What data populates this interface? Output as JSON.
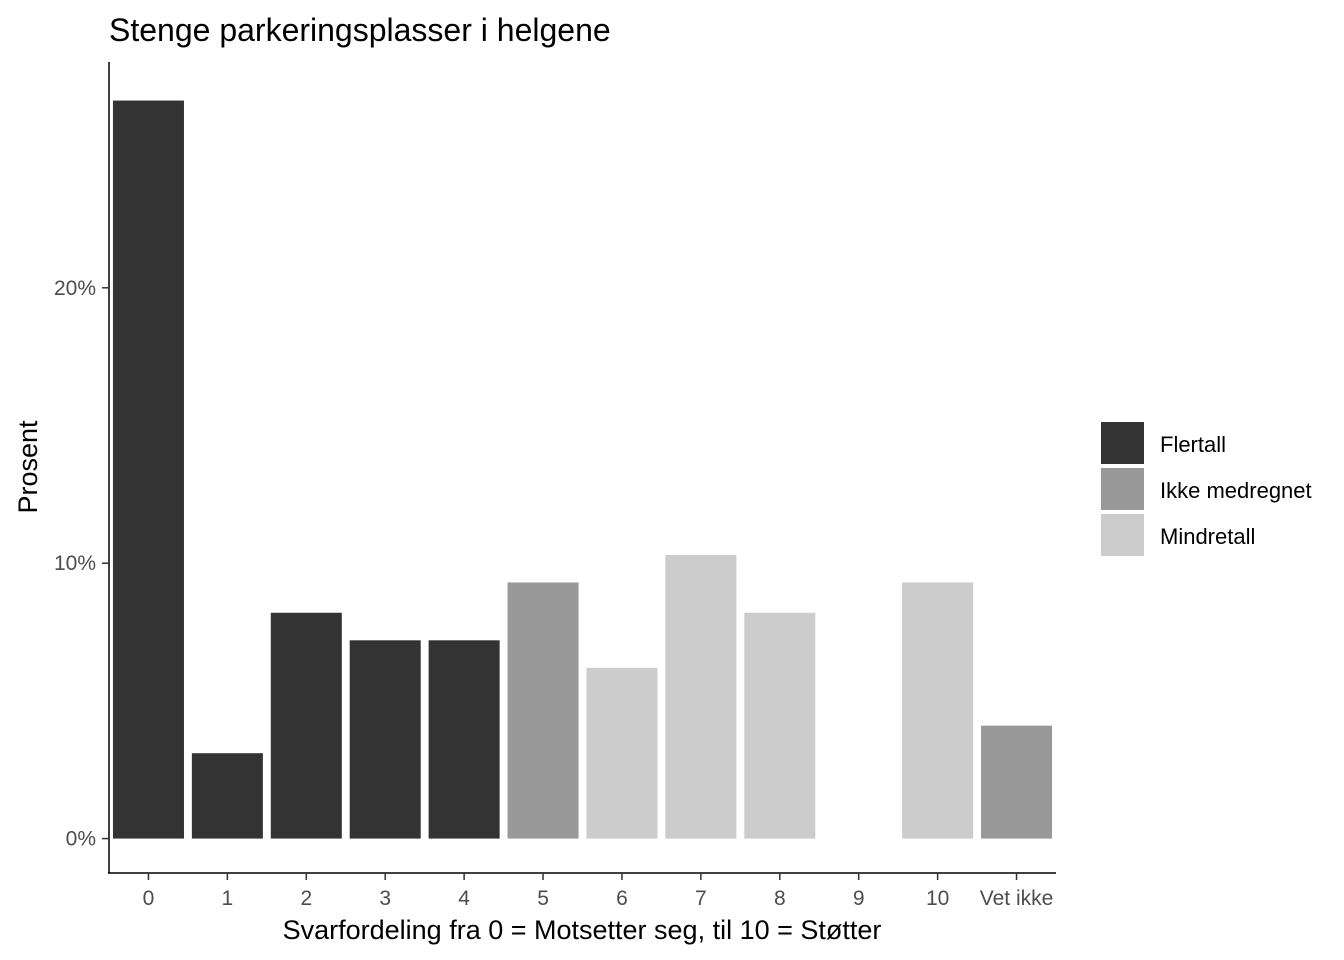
{
  "chart_data": {
    "type": "bar",
    "title": "Stenge parkeringsplasser i helgene",
    "xlabel": "Svarfordeling fra 0 = Motsetter seg, til 10 = Støtter",
    "ylabel": "Prosent",
    "categories": [
      "0",
      "1",
      "2",
      "3",
      "4",
      "5",
      "6",
      "7",
      "8",
      "9",
      "10",
      "Vet ikke"
    ],
    "values": [
      26.8,
      3.1,
      8.2,
      7.2,
      7.2,
      9.3,
      6.2,
      10.3,
      8.2,
      0,
      9.3,
      4.1
    ],
    "groups": [
      "Flertall",
      "Flertall",
      "Flertall",
      "Flertall",
      "Flertall",
      "Ikke medregnet",
      "Mindretall",
      "Mindretall",
      "Mindretall",
      "Mindretall",
      "Mindretall",
      "Ikke medregnet"
    ],
    "y_ticks": [
      0,
      10,
      20
    ],
    "y_tick_labels": [
      "0%",
      "10%",
      "20%"
    ],
    "ylim": [
      -1.25,
      28.2
    ],
    "grid": false,
    "legend_position": "right",
    "legend": [
      {
        "name": "Flertall",
        "color": "#333333"
      },
      {
        "name": "Ikke medregnet",
        "color": "#999999"
      },
      {
        "name": "Mindretall",
        "color": "#cccccc"
      }
    ]
  }
}
